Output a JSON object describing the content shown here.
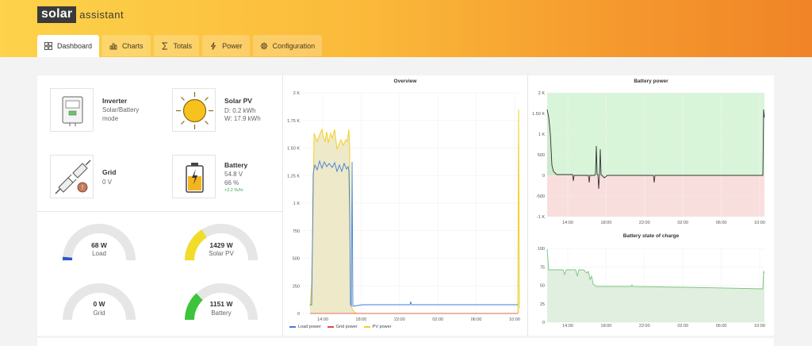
{
  "app": {
    "brand_box": "solar",
    "brand_text": "assistant"
  },
  "tabs": [
    {
      "label": "Dashboard",
      "icon": "grid-icon",
      "active": true
    },
    {
      "label": "Charts",
      "icon": "bar-chart-icon"
    },
    {
      "label": "Totals",
      "icon": "sigma-icon"
    },
    {
      "label": "Power",
      "icon": "bolt-icon"
    },
    {
      "label": "Configuration",
      "icon": "gear-icon"
    }
  ],
  "cards": {
    "inverter": {
      "title": "Inverter",
      "line1": "Solar/Battery",
      "line2": "mode"
    },
    "solar": {
      "title": "Solar PV",
      "line1": "D: 0.2 kWh",
      "line2": "W: 17.9 kWh"
    },
    "grid": {
      "title": "Grid",
      "line1": "0 V"
    },
    "battery": {
      "title": "Battery",
      "line1": "54.8 V",
      "line2": "66 %",
      "rate": "+2.2 %/hr"
    }
  },
  "gauges": [
    {
      "id": "load",
      "value": "68 W",
      "label": "Load",
      "fraction": 0.03,
      "color": "#2a56c6"
    },
    {
      "id": "solar",
      "value": "1429 W",
      "label": "Solar PV",
      "fraction": 0.32,
      "color": "#f2dc2a"
    },
    {
      "id": "grid",
      "value": "0 W",
      "label": "Grid",
      "fraction": 0,
      "color": "#999999"
    },
    {
      "id": "battery",
      "value": "1151 W",
      "label": "Battery",
      "fraction": 0.26,
      "color": "#3cc43c"
    }
  ],
  "chart_data": [
    {
      "type": "line",
      "title": "Overview",
      "y_ticks": [
        "2 K",
        "1.75 K",
        "1.50 K",
        "1.25 K",
        "1 K",
        "750",
        "500",
        "250",
        "0"
      ],
      "x_ticks": [
        "14:00",
        "18:00",
        "22:00",
        "02:00",
        "06:00",
        "10:00"
      ],
      "ylim": [
        0,
        2000
      ],
      "series": [
        {
          "name": "Load power",
          "color": "#3d7ed8"
        },
        {
          "name": "Grid power",
          "color": "#e0454e"
        },
        {
          "name": "PV power",
          "color": "#f2d02a"
        }
      ],
      "legend": "bottom"
    },
    {
      "type": "area",
      "title": "Battery power",
      "y_ticks": [
        "2 K",
        "1.50 K",
        "1 K",
        "500",
        "0",
        "-500",
        "-1 K"
      ],
      "x_ticks": [
        "14:00",
        "18:00",
        "22:00",
        "02:00",
        "06:00",
        "10:00"
      ],
      "ylim": [
        -1000,
        2000
      ]
    },
    {
      "type": "area",
      "title": "Battery state of charge",
      "y_ticks": [
        "100",
        "75",
        "50",
        "25",
        "0"
      ],
      "x_ticks": [
        "14:00",
        "18:00",
        "22:00",
        "02:00",
        "06:00",
        "10:00"
      ],
      "ylim": [
        0,
        100
      ]
    }
  ]
}
